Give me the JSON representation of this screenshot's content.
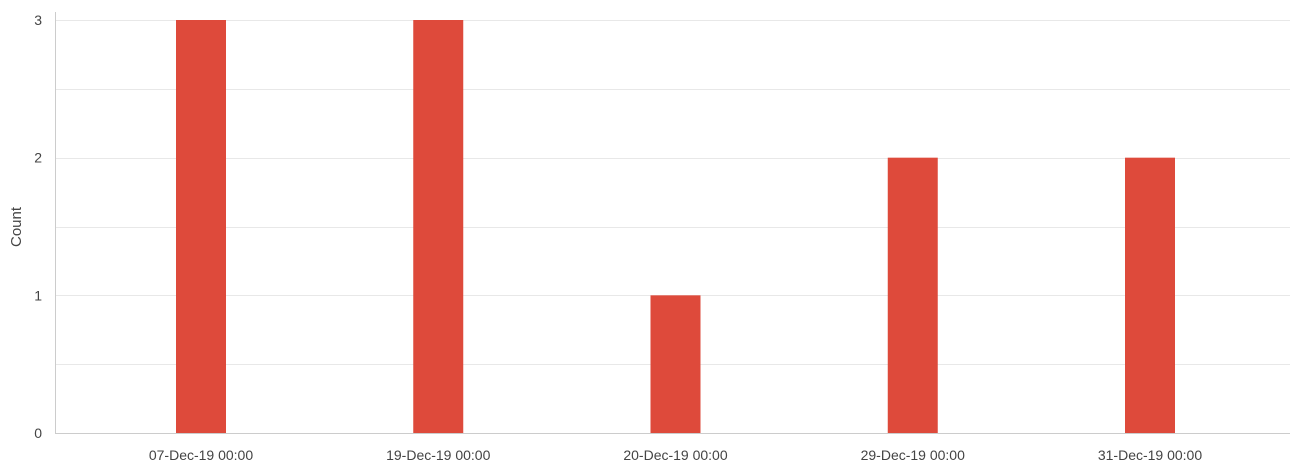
{
  "chart_data": {
    "type": "bar",
    "title": "",
    "xlabel": "",
    "ylabel": "Count",
    "categories": [
      "07-Dec-19 00:00",
      "19-Dec-19 00:00",
      "20-Dec-19 00:00",
      "29-Dec-19 00:00",
      "31-Dec-19 00:00"
    ],
    "values": [
      3,
      3,
      1,
      2,
      2
    ],
    "ylim": [
      0,
      3
    ],
    "y_ticks": [
      "0",
      "1",
      "2",
      "3"
    ],
    "grid": "horizontal",
    "legend": "none",
    "bar_color": "#de4a3b",
    "grid_color": "#e8e8e8",
    "axis_color": "#cccccc"
  }
}
